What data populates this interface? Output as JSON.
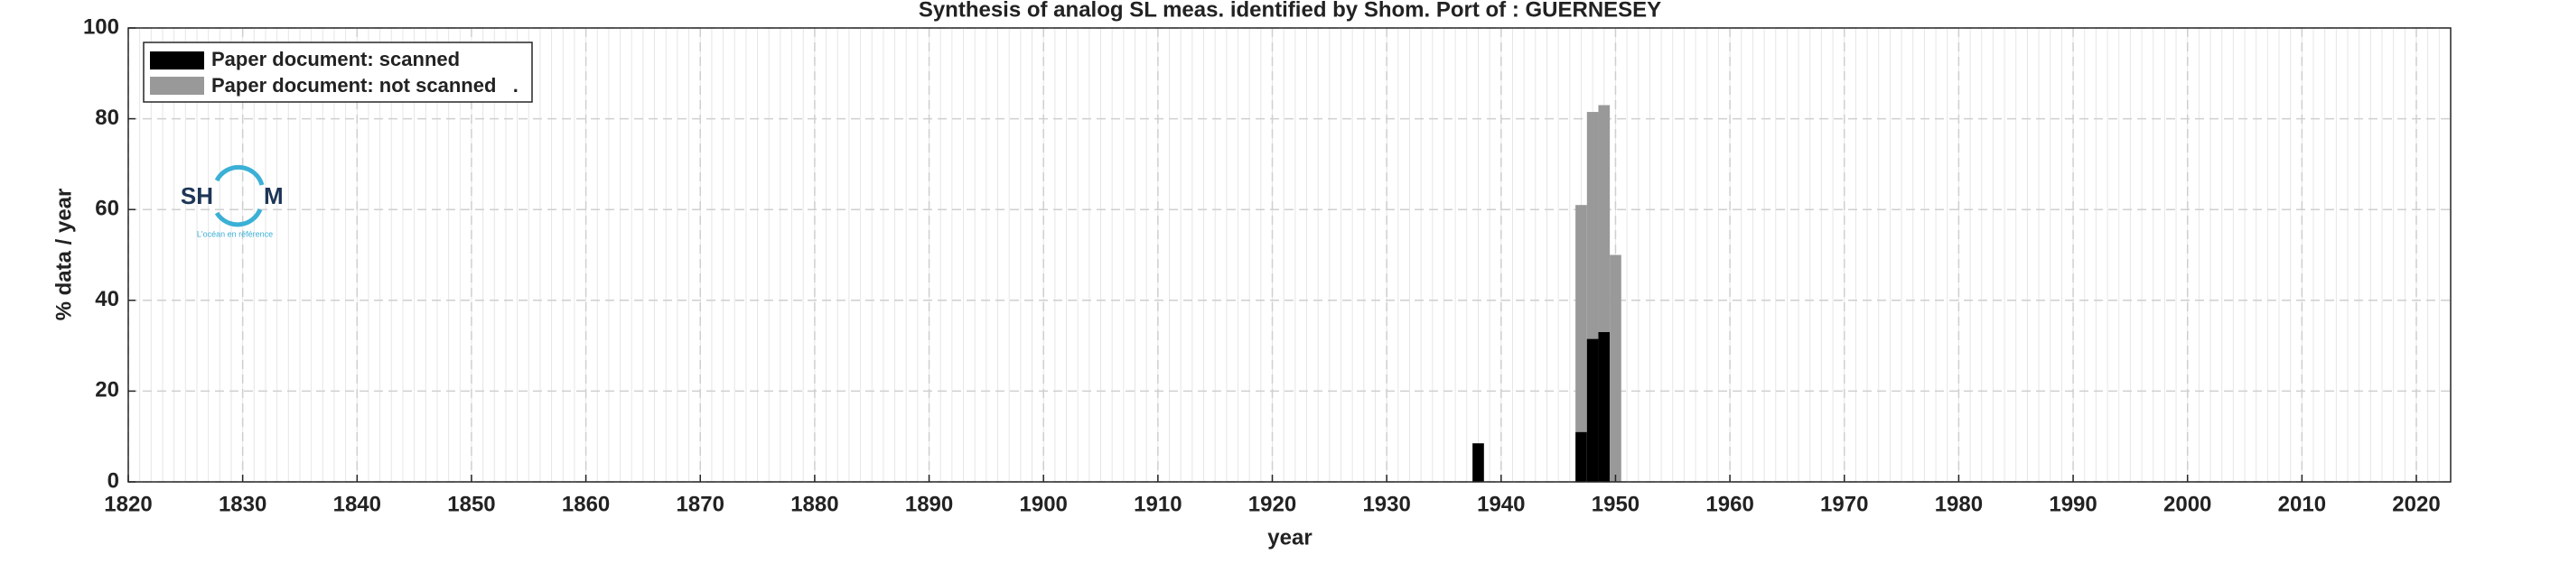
{
  "chart_data": {
    "type": "bar",
    "stacked": true,
    "title": "Synthesis of analog SL meas. identified by Shom. Port of : GUERNESEY",
    "xlabel": "year",
    "ylabel": "% data / year",
    "x": [
      1938,
      1947,
      1948,
      1949,
      1950
    ],
    "series": [
      {
        "name": "Paper document: scanned",
        "color": "#000000",
        "values": [
          8.5,
          11,
          31.5,
          33,
          0
        ]
      },
      {
        "name": "Paper document: not scanned   .",
        "color": "#999999",
        "values": [
          0,
          50,
          50,
          50,
          50
        ]
      }
    ],
    "xlim": [
      1820,
      2023
    ],
    "xticks": [
      1820,
      1830,
      1840,
      1850,
      1860,
      1870,
      1880,
      1890,
      1900,
      1910,
      1920,
      1930,
      1940,
      1950,
      1960,
      1970,
      1980,
      1990,
      2000,
      2010,
      2020
    ],
    "ylim": [
      0,
      100
    ],
    "yticks": [
      0,
      20,
      40,
      60,
      80,
      100
    ],
    "grid": true,
    "minor_grid": true,
    "legend": "upper left",
    "logo": {
      "left": "SH",
      "right": "M",
      "tagline": "L'océan en référence"
    }
  }
}
